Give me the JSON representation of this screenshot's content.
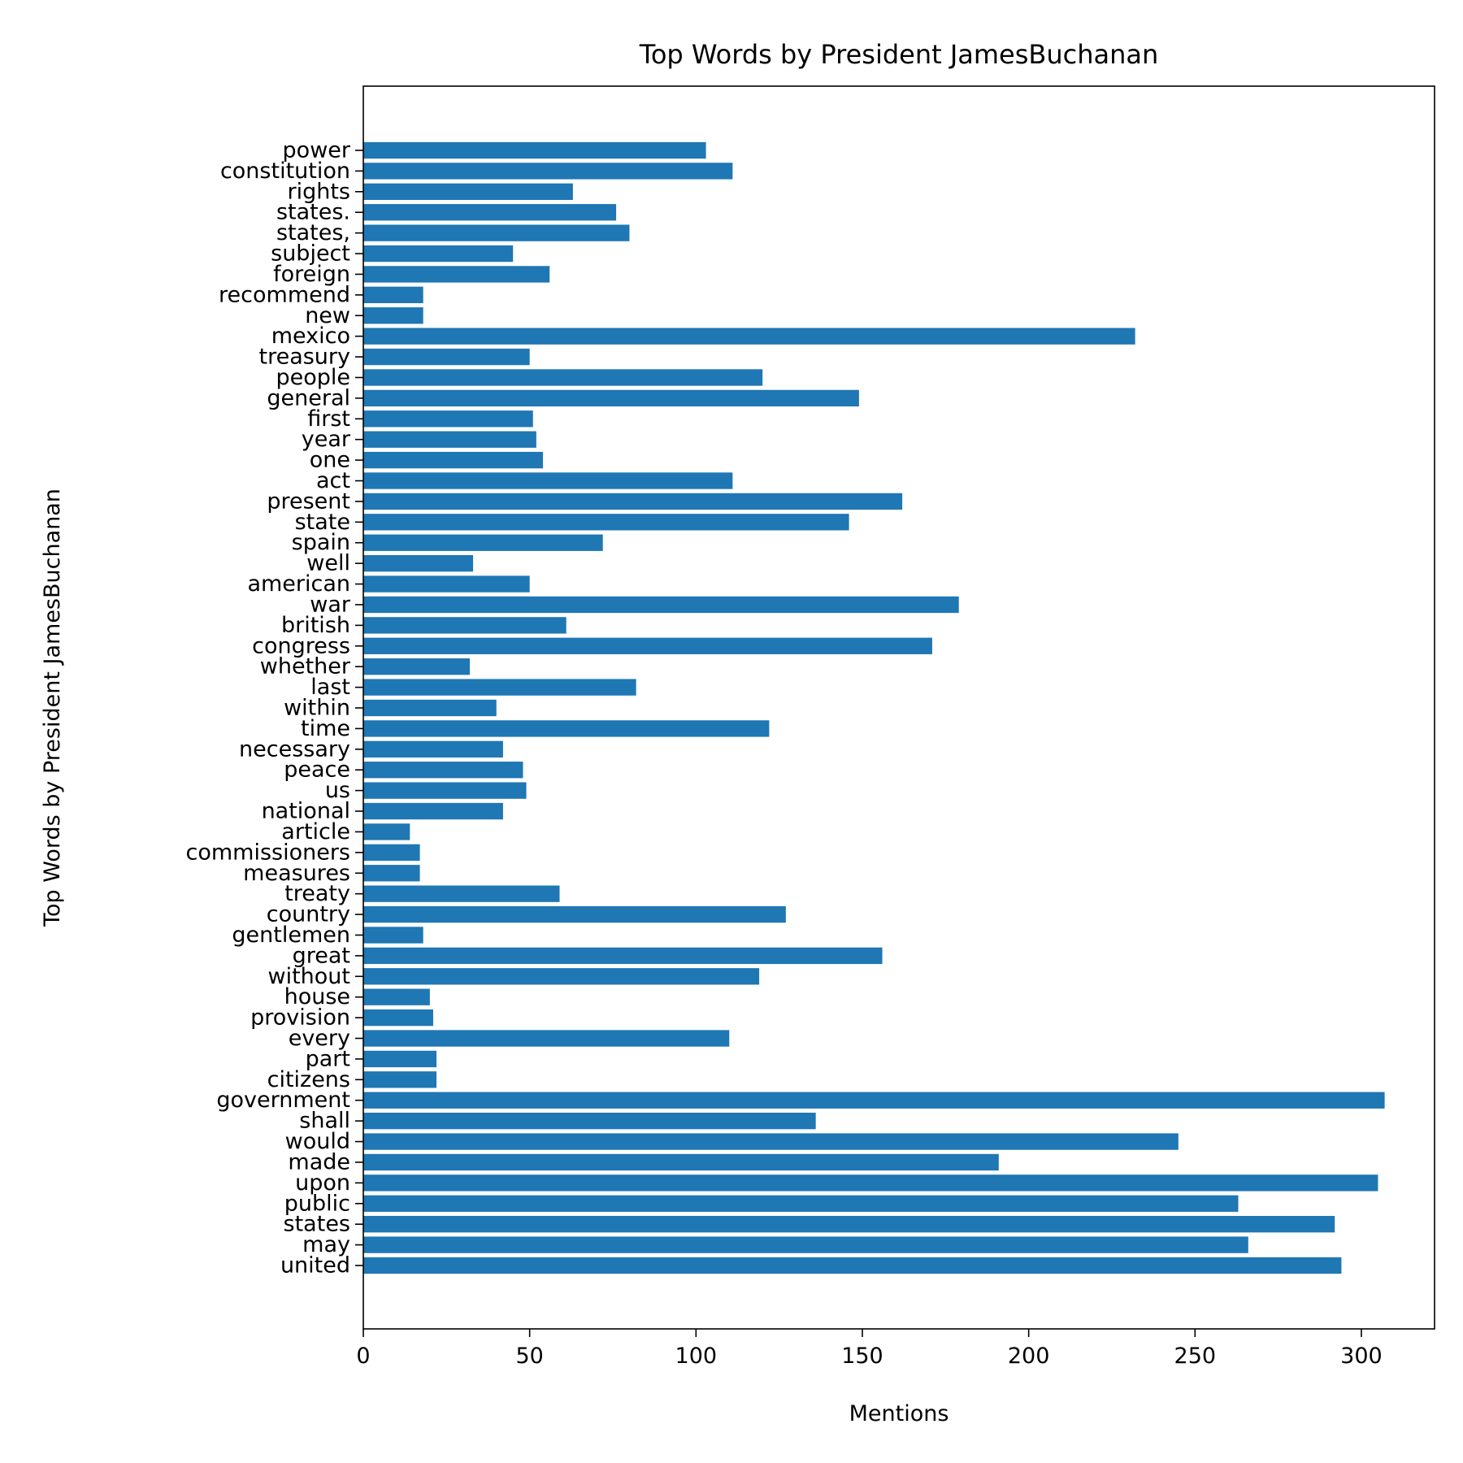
{
  "chart_data": {
    "type": "bar",
    "orientation": "horizontal",
    "title": "Top Words by President JamesBuchanan",
    "xlabel": "Mentions",
    "ylabel": "Top Words by President JamesBuchanan",
    "xlim": [
      0,
      322
    ],
    "xticks": [
      0,
      50,
      100,
      150,
      200,
      250,
      300
    ],
    "grid": false,
    "bar_color": "#1f77b4",
    "categories": [
      "united",
      "may",
      "states",
      "public",
      "upon",
      "made",
      "would",
      "shall",
      "government",
      "citizens",
      "part",
      "every",
      "provision",
      "house",
      "without",
      "great",
      "gentlemen",
      "country",
      "treaty",
      "measures",
      "commissioners",
      "article",
      "national",
      "us",
      "peace",
      "necessary",
      "time",
      "within",
      "last",
      "whether",
      "congress",
      "british",
      "war",
      "american",
      "well",
      "spain",
      "state",
      "present",
      "act",
      "one",
      "year",
      "first",
      "general",
      "people",
      "treasury",
      "mexico",
      "new",
      "recommend",
      "foreign",
      "subject",
      "states,",
      "states.",
      "rights",
      "constitution",
      "power"
    ],
    "values": [
      294,
      266,
      292,
      263,
      305,
      191,
      245,
      136,
      307,
      22,
      22,
      110,
      21,
      20,
      119,
      156,
      18,
      127,
      59,
      17,
      17,
      14,
      42,
      49,
      48,
      42,
      122,
      40,
      82,
      32,
      171,
      61,
      179,
      50,
      33,
      72,
      146,
      162,
      111,
      54,
      52,
      51,
      149,
      120,
      50,
      232,
      18,
      18,
      56,
      45,
      80,
      76,
      63,
      111,
      103
    ]
  }
}
